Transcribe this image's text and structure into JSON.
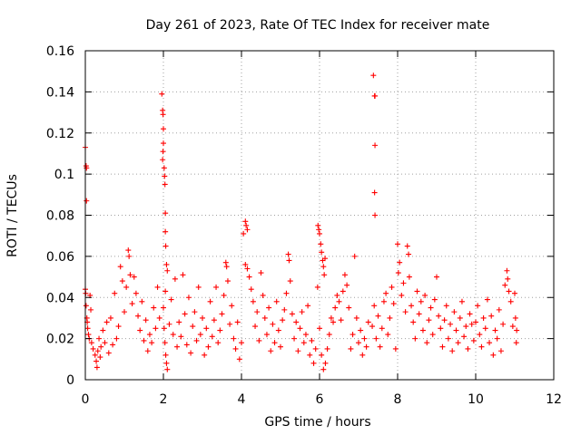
{
  "chart_data": {
    "type": "scatter",
    "title": "Day 261 of 2023, Rate Of TEC Index for receiver mate",
    "xlabel": "GPS time / hours",
    "ylabel": "ROTI / TECUs",
    "xlim": [
      0,
      12
    ],
    "ylim": [
      0,
      0.16
    ],
    "xticks": [
      0,
      2,
      4,
      6,
      8,
      10,
      12
    ],
    "yticks": [
      0,
      0.02,
      0.04,
      0.06,
      0.08,
      0.1,
      0.12,
      0.14,
      0.16
    ],
    "xtick_labels": [
      "0",
      "2",
      "4",
      "6",
      "8",
      "10",
      "12"
    ],
    "ytick_labels": [
      "0",
      "0.02",
      "0.04",
      "0.06",
      "0.08",
      "0.1",
      "0.12",
      "0.14",
      "0.16"
    ],
    "grid": true,
    "marker": "+",
    "color": "#ff0000",
    "series": [
      {
        "name": "ROTI",
        "points": [
          [
            0.0,
            0.113
          ],
          [
            0.02,
            0.104
          ],
          [
            0.03,
            0.103
          ],
          [
            0.03,
            0.087
          ],
          [
            0.0,
            0.044
          ],
          [
            0.01,
            0.042
          ],
          [
            0.02,
            0.036
          ],
          [
            0.04,
            0.03
          ],
          [
            0.05,
            0.028
          ],
          [
            0.06,
            0.025
          ],
          [
            0.08,
            0.022
          ],
          [
            0.1,
            0.02
          ],
          [
            0.12,
            0.041
          ],
          [
            0.14,
            0.034
          ],
          [
            0.16,
            0.018
          ],
          [
            0.2,
            0.015
          ],
          [
            0.25,
            0.012
          ],
          [
            0.28,
            0.009
          ],
          [
            0.3,
            0.006
          ],
          [
            0.32,
            0.014
          ],
          [
            0.35,
            0.02
          ],
          [
            0.38,
            0.011
          ],
          [
            0.4,
            0.016
          ],
          [
            0.45,
            0.024
          ],
          [
            0.5,
            0.018
          ],
          [
            0.55,
            0.028
          ],
          [
            0.6,
            0.013
          ],
          [
            0.65,
            0.03
          ],
          [
            0.7,
            0.017
          ],
          [
            0.75,
            0.042
          ],
          [
            0.8,
            0.02
          ],
          [
            0.85,
            0.026
          ],
          [
            0.9,
            0.055
          ],
          [
            0.95,
            0.048
          ],
          [
            1.0,
            0.033
          ],
          [
            1.05,
            0.045
          ],
          [
            1.1,
            0.063
          ],
          [
            1.12,
            0.06
          ],
          [
            1.15,
            0.051
          ],
          [
            1.2,
            0.037
          ],
          [
            1.25,
            0.05
          ],
          [
            1.3,
            0.042
          ],
          [
            1.35,
            0.031
          ],
          [
            1.4,
            0.024
          ],
          [
            1.45,
            0.038
          ],
          [
            1.5,
            0.019
          ],
          [
            1.55,
            0.029
          ],
          [
            1.6,
            0.014
          ],
          [
            1.65,
            0.022
          ],
          [
            1.7,
            0.018
          ],
          [
            1.75,
            0.035
          ],
          [
            1.8,
            0.025
          ],
          [
            1.85,
            0.045
          ],
          [
            1.9,
            0.03
          ],
          [
            1.96,
            0.139
          ],
          [
            1.98,
            0.131
          ],
          [
            1.99,
            0.129
          ],
          [
            2.0,
            0.122
          ],
          [
            2.0,
            0.115
          ],
          [
            1.99,
            0.111
          ],
          [
            1.98,
            0.107
          ],
          [
            2.02,
            0.103
          ],
          [
            2.03,
            0.099
          ],
          [
            2.04,
            0.095
          ],
          [
            2.05,
            0.081
          ],
          [
            2.05,
            0.072
          ],
          [
            2.06,
            0.065
          ],
          [
            2.08,
            0.056
          ],
          [
            2.1,
            0.053
          ],
          [
            2.05,
            0.043
          ],
          [
            2.0,
            0.035
          ],
          [
            2.02,
            0.025
          ],
          [
            2.04,
            0.018
          ],
          [
            2.06,
            0.012
          ],
          [
            2.08,
            0.008
          ],
          [
            2.1,
            0.005
          ],
          [
            2.15,
            0.027
          ],
          [
            2.2,
            0.039
          ],
          [
            2.25,
            0.022
          ],
          [
            2.3,
            0.049
          ],
          [
            2.35,
            0.016
          ],
          [
            2.4,
            0.028
          ],
          [
            2.45,
            0.021
          ],
          [
            2.5,
            0.051
          ],
          [
            2.55,
            0.032
          ],
          [
            2.6,
            0.017
          ],
          [
            2.65,
            0.04
          ],
          [
            2.7,
            0.013
          ],
          [
            2.75,
            0.026
          ],
          [
            2.8,
            0.033
          ],
          [
            2.85,
            0.019
          ],
          [
            2.9,
            0.045
          ],
          [
            2.95,
            0.022
          ],
          [
            3.0,
            0.03
          ],
          [
            3.05,
            0.012
          ],
          [
            3.1,
            0.025
          ],
          [
            3.15,
            0.016
          ],
          [
            3.2,
            0.038
          ],
          [
            3.25,
            0.021
          ],
          [
            3.3,
            0.029
          ],
          [
            3.35,
            0.045
          ],
          [
            3.4,
            0.018
          ],
          [
            3.45,
            0.024
          ],
          [
            3.5,
            0.032
          ],
          [
            3.55,
            0.041
          ],
          [
            3.6,
            0.057
          ],
          [
            3.62,
            0.055
          ],
          [
            3.65,
            0.048
          ],
          [
            3.7,
            0.027
          ],
          [
            3.75,
            0.036
          ],
          [
            3.8,
            0.02
          ],
          [
            3.85,
            0.015
          ],
          [
            3.9,
            0.028
          ],
          [
            3.95,
            0.01
          ],
          [
            4.0,
            0.018
          ],
          [
            4.1,
            0.077
          ],
          [
            4.12,
            0.075
          ],
          [
            4.15,
            0.073
          ],
          [
            4.05,
            0.071
          ],
          [
            4.1,
            0.056
          ],
          [
            4.15,
            0.054
          ],
          [
            4.2,
            0.05
          ],
          [
            4.25,
            0.044
          ],
          [
            4.3,
            0.038
          ],
          [
            4.35,
            0.026
          ],
          [
            4.4,
            0.033
          ],
          [
            4.45,
            0.019
          ],
          [
            4.5,
            0.052
          ],
          [
            4.55,
            0.041
          ],
          [
            4.6,
            0.03
          ],
          [
            4.65,
            0.022
          ],
          [
            4.7,
            0.035
          ],
          [
            4.75,
            0.014
          ],
          [
            4.8,
            0.027
          ],
          [
            4.85,
            0.018
          ],
          [
            4.9,
            0.038
          ],
          [
            4.95,
            0.024
          ],
          [
            5.0,
            0.016
          ],
          [
            5.05,
            0.029
          ],
          [
            5.1,
            0.034
          ],
          [
            5.15,
            0.042
          ],
          [
            5.2,
            0.061
          ],
          [
            5.22,
            0.058
          ],
          [
            5.25,
            0.048
          ],
          [
            5.3,
            0.032
          ],
          [
            5.35,
            0.02
          ],
          [
            5.4,
            0.028
          ],
          [
            5.45,
            0.014
          ],
          [
            5.5,
            0.025
          ],
          [
            5.55,
            0.033
          ],
          [
            5.6,
            0.018
          ],
          [
            5.65,
            0.022
          ],
          [
            5.7,
            0.036
          ],
          [
            5.75,
            0.012
          ],
          [
            5.8,
            0.019
          ],
          [
            5.85,
            0.008
          ],
          [
            5.9,
            0.015
          ],
          [
            5.96,
            0.075
          ],
          [
            5.98,
            0.073
          ],
          [
            6.0,
            0.071
          ],
          [
            6.03,
            0.066
          ],
          [
            6.05,
            0.062
          ],
          [
            6.08,
            0.058
          ],
          [
            6.1,
            0.055
          ],
          [
            6.12,
            0.051
          ],
          [
            6.14,
            0.059
          ],
          [
            5.95,
            0.045
          ],
          [
            6.0,
            0.025
          ],
          [
            6.05,
            0.012
          ],
          [
            6.1,
            0.005
          ],
          [
            6.15,
            0.008
          ],
          [
            6.2,
            0.015
          ],
          [
            6.25,
            0.022
          ],
          [
            6.3,
            0.03
          ],
          [
            6.35,
            0.028
          ],
          [
            6.4,
            0.035
          ],
          [
            6.45,
            0.041
          ],
          [
            6.5,
            0.038
          ],
          [
            6.55,
            0.029
          ],
          [
            6.6,
            0.043
          ],
          [
            6.65,
            0.051
          ],
          [
            6.7,
            0.046
          ],
          [
            6.75,
            0.035
          ],
          [
            6.8,
            0.015
          ],
          [
            6.85,
            0.022
          ],
          [
            6.9,
            0.06
          ],
          [
            6.95,
            0.03
          ],
          [
            7.0,
            0.018
          ],
          [
            7.05,
            0.024
          ],
          [
            7.1,
            0.012
          ],
          [
            7.15,
            0.02
          ],
          [
            7.2,
            0.016
          ],
          [
            7.25,
            0.028
          ],
          [
            7.38,
            0.148
          ],
          [
            7.42,
            0.138
          ],
          [
            7.41,
            0.138
          ],
          [
            7.42,
            0.114
          ],
          [
            7.41,
            0.091
          ],
          [
            7.42,
            0.08
          ],
          [
            7.35,
            0.026
          ],
          [
            7.4,
            0.036
          ],
          [
            7.45,
            0.02
          ],
          [
            7.5,
            0.031
          ],
          [
            7.55,
            0.016
          ],
          [
            7.6,
            0.025
          ],
          [
            7.65,
            0.038
          ],
          [
            7.7,
            0.042
          ],
          [
            7.75,
            0.022
          ],
          [
            7.8,
            0.03
          ],
          [
            7.85,
            0.045
          ],
          [
            7.9,
            0.037
          ],
          [
            7.95,
            0.015
          ],
          [
            8.0,
            0.066
          ],
          [
            8.02,
            0.052
          ],
          [
            8.05,
            0.057
          ],
          [
            8.1,
            0.041
          ],
          [
            8.15,
            0.047
          ],
          [
            8.2,
            0.033
          ],
          [
            8.25,
            0.065
          ],
          [
            8.28,
            0.061
          ],
          [
            8.3,
            0.05
          ],
          [
            8.35,
            0.036
          ],
          [
            8.4,
            0.028
          ],
          [
            8.45,
            0.02
          ],
          [
            8.5,
            0.043
          ],
          [
            8.55,
            0.032
          ],
          [
            8.6,
            0.038
          ],
          [
            8.65,
            0.024
          ],
          [
            8.7,
            0.041
          ],
          [
            8.75,
            0.018
          ],
          [
            8.8,
            0.029
          ],
          [
            8.85,
            0.035
          ],
          [
            8.9,
            0.022
          ],
          [
            8.95,
            0.039
          ],
          [
            9.0,
            0.05
          ],
          [
            9.05,
            0.031
          ],
          [
            9.1,
            0.025
          ],
          [
            9.15,
            0.016
          ],
          [
            9.2,
            0.029
          ],
          [
            9.25,
            0.036
          ],
          [
            9.3,
            0.02
          ],
          [
            9.35,
            0.027
          ],
          [
            9.4,
            0.014
          ],
          [
            9.45,
            0.033
          ],
          [
            9.5,
            0.024
          ],
          [
            9.55,
            0.018
          ],
          [
            9.6,
            0.03
          ],
          [
            9.65,
            0.038
          ],
          [
            9.7,
            0.021
          ],
          [
            9.75,
            0.026
          ],
          [
            9.8,
            0.015
          ],
          [
            9.85,
            0.032
          ],
          [
            9.9,
            0.027
          ],
          [
            9.95,
            0.019
          ],
          [
            10.0,
            0.028
          ],
          [
            10.05,
            0.036
          ],
          [
            10.1,
            0.022
          ],
          [
            10.15,
            0.016
          ],
          [
            10.2,
            0.03
          ],
          [
            10.25,
            0.025
          ],
          [
            10.3,
            0.039
          ],
          [
            10.35,
            0.018
          ],
          [
            10.4,
            0.031
          ],
          [
            10.45,
            0.012
          ],
          [
            10.5,
            0.024
          ],
          [
            10.55,
            0.02
          ],
          [
            10.6,
            0.034
          ],
          [
            10.65,
            0.014
          ],
          [
            10.7,
            0.027
          ],
          [
            10.75,
            0.046
          ],
          [
            10.8,
            0.053
          ],
          [
            10.82,
            0.049
          ],
          [
            10.85,
            0.043
          ],
          [
            10.9,
            0.038
          ],
          [
            10.95,
            0.026
          ],
          [
            11.0,
            0.042
          ],
          [
            11.02,
            0.03
          ],
          [
            11.04,
            0.018
          ],
          [
            11.05,
            0.024
          ]
        ]
      }
    ]
  }
}
